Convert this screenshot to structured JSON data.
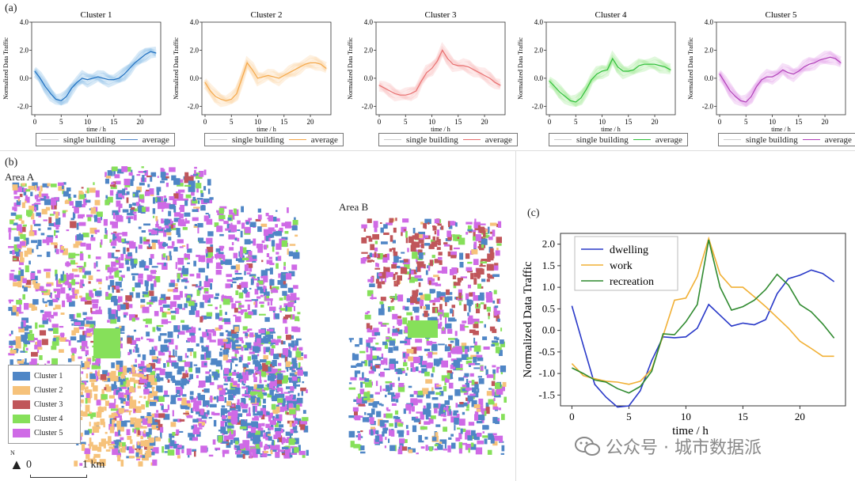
{
  "panel_labels": {
    "a": "(a)",
    "b": "(b)",
    "c": "(c)"
  },
  "area_labels": {
    "a": "Area A",
    "b": "Area B"
  },
  "map_legend": [
    {
      "label": "Cluster 1",
      "color": "#4f86c6"
    },
    {
      "label": "Cluster 2",
      "color": "#f6c27a"
    },
    {
      "label": "Cluster 3",
      "color": "#c0565a"
    },
    {
      "label": "Cluster 4",
      "color": "#86e05a"
    },
    {
      "label": "Cluster 5",
      "color": "#cf6ae6"
    }
  ],
  "scale_bar": {
    "north": "N",
    "start": "0",
    "end": "1 km"
  },
  "watermark": "公众号 · 城市数据派",
  "small_legend": {
    "single": "single building",
    "average": "average"
  },
  "chart_data": [
    {
      "type": "line",
      "title": "Cluster 1",
      "color": "#1f6fc0",
      "band": "#8dbfe8",
      "xlabel": "time / h",
      "ylabel": "Normalized Data Traffic",
      "xlim": [
        0,
        23
      ],
      "ylim": [
        -2.6,
        4.0
      ],
      "xticks": [
        0,
        5,
        10,
        15,
        20
      ],
      "yticks": [
        -2.0,
        0.0,
        2.0,
        4.0
      ],
      "x": [
        0,
        1,
        2,
        3,
        4,
        5,
        6,
        7,
        8,
        9,
        10,
        11,
        12,
        13,
        14,
        15,
        16,
        17,
        18,
        19,
        20,
        21,
        22,
        23
      ],
      "values": [
        0.5,
        0.0,
        -0.6,
        -1.1,
        -1.5,
        -1.6,
        -1.3,
        -0.7,
        -0.3,
        0.0,
        -0.1,
        0.0,
        0.1,
        0.0,
        -0.1,
        -0.1,
        0.0,
        0.3,
        0.7,
        1.1,
        1.4,
        1.7,
        1.9,
        1.8
      ]
    },
    {
      "type": "line",
      "title": "Cluster 2",
      "color": "#f4a84a",
      "band": "#fbd8a8",
      "xlabel": "time / h",
      "ylabel": "Normalized Data Traffic",
      "xlim": [
        0,
        23
      ],
      "ylim": [
        -2.6,
        4.0
      ],
      "xticks": [
        0,
        5,
        10,
        15,
        20
      ],
      "yticks": [
        -2.0,
        0.0,
        2.0,
        4.0
      ],
      "x": [
        0,
        1,
        2,
        3,
        4,
        5,
        6,
        7,
        8,
        9,
        10,
        11,
        12,
        13,
        14,
        15,
        16,
        17,
        18,
        19,
        20,
        21,
        22,
        23
      ],
      "values": [
        -0.3,
        -0.9,
        -1.3,
        -1.5,
        -1.6,
        -1.5,
        -1.1,
        0.0,
        1.1,
        0.6,
        0.0,
        0.1,
        0.2,
        0.1,
        0.0,
        0.2,
        0.4,
        0.6,
        0.8,
        1.0,
        1.1,
        1.1,
        1.0,
        0.7
      ]
    },
    {
      "type": "line",
      "title": "Cluster 3",
      "color": "#e87070",
      "band": "#f8c3c3",
      "xlabel": "time / h",
      "ylabel": "Normalized Data Traffic",
      "xlim": [
        0,
        23
      ],
      "ylim": [
        -2.6,
        4.0
      ],
      "xticks": [
        0,
        5,
        10,
        15,
        20
      ],
      "yticks": [
        -2.0,
        0.0,
        2.0,
        4.0
      ],
      "x": [
        0,
        1,
        2,
        3,
        4,
        5,
        6,
        7,
        8,
        9,
        10,
        11,
        12,
        13,
        14,
        15,
        16,
        17,
        18,
        19,
        20,
        21,
        22,
        23
      ],
      "values": [
        -0.5,
        -0.7,
        -0.9,
        -1.1,
        -1.2,
        -1.2,
        -1.1,
        -0.9,
        -0.2,
        0.4,
        0.7,
        1.2,
        2.0,
        1.4,
        1.0,
        0.9,
        0.9,
        0.8,
        0.6,
        0.4,
        0.2,
        0.0,
        -0.3,
        -0.5
      ]
    },
    {
      "type": "line",
      "title": "Cluster 4",
      "color": "#2fbf3a",
      "band": "#a6ea9c",
      "xlabel": "time / h",
      "ylabel": "Normalized Data Traffic",
      "xlim": [
        0,
        23
      ],
      "ylim": [
        -2.6,
        4.0
      ],
      "xticks": [
        0,
        5,
        10,
        15,
        20
      ],
      "yticks": [
        -2.0,
        0.0,
        2.0,
        4.0
      ],
      "x": [
        0,
        1,
        2,
        3,
        4,
        5,
        6,
        7,
        8,
        9,
        10,
        11,
        12,
        13,
        14,
        15,
        16,
        17,
        18,
        19,
        20,
        21,
        22,
        23
      ],
      "values": [
        -0.2,
        -0.6,
        -1.0,
        -1.3,
        -1.6,
        -1.7,
        -1.4,
        -0.8,
        -0.1,
        0.3,
        0.5,
        0.6,
        1.4,
        0.8,
        0.5,
        0.5,
        0.6,
        0.9,
        1.0,
        1.0,
        1.0,
        0.9,
        0.8,
        0.6
      ]
    },
    {
      "type": "line",
      "title": "Cluster 5",
      "color": "#b040b8",
      "band": "#e6a6ea",
      "xlabel": "time / h",
      "ylabel": "Normalized Data Traffic",
      "xlim": [
        0,
        23
      ],
      "ylim": [
        -2.6,
        4.0
      ],
      "xticks": [
        0,
        5,
        10,
        15,
        20
      ],
      "yticks": [
        -2.0,
        0.0,
        2.0,
        4.0
      ],
      "x": [
        0,
        1,
        2,
        3,
        4,
        5,
        6,
        7,
        8,
        9,
        10,
        11,
        12,
        13,
        14,
        15,
        16,
        17,
        18,
        19,
        20,
        21,
        22,
        23
      ],
      "values": [
        0.3,
        -0.3,
        -0.9,
        -1.3,
        -1.6,
        -1.7,
        -1.3,
        -0.6,
        -0.1,
        0.1,
        0.1,
        0.3,
        0.6,
        0.4,
        0.3,
        0.5,
        0.8,
        1.0,
        1.1,
        1.3,
        1.4,
        1.5,
        1.4,
        1.1
      ]
    },
    {
      "type": "line",
      "title": "",
      "xlabel": "time / h",
      "ylabel": "Normalized Data Traffic",
      "xlim": [
        -1,
        24
      ],
      "ylim": [
        -1.75,
        2.25
      ],
      "xticks": [
        0,
        5,
        10,
        15,
        20
      ],
      "yticks": [
        -1.5,
        -1.0,
        -0.5,
        0.0,
        0.5,
        1.0,
        1.5,
        2.0
      ],
      "x": [
        0,
        1,
        2,
        3,
        4,
        5,
        6,
        7,
        8,
        9,
        10,
        11,
        12,
        13,
        14,
        15,
        16,
        17,
        18,
        19,
        20,
        21,
        22,
        23
      ],
      "series": [
        {
          "name": "dwelling",
          "color": "#2838c8",
          "values": [
            0.57,
            -0.35,
            -1.25,
            -1.55,
            -1.78,
            -1.75,
            -1.4,
            -0.7,
            -0.15,
            -0.17,
            -0.15,
            0.05,
            0.6,
            0.35,
            0.1,
            0.17,
            0.13,
            0.25,
            0.85,
            1.2,
            1.28,
            1.4,
            1.32,
            1.13
          ]
        },
        {
          "name": "work",
          "color": "#f1b035",
          "values": [
            -0.77,
            -1.05,
            -1.12,
            -1.18,
            -1.2,
            -1.25,
            -1.18,
            -0.9,
            -0.12,
            0.7,
            0.75,
            1.25,
            2.13,
            1.3,
            1.0,
            1.0,
            0.78,
            0.55,
            0.3,
            0.05,
            -0.25,
            -0.42,
            -0.6,
            -0.6
          ]
        },
        {
          "name": "recreation",
          "color": "#2f8a2f",
          "values": [
            -0.87,
            -1.0,
            -1.15,
            -1.2,
            -1.35,
            -1.45,
            -1.3,
            -0.95,
            -0.08,
            -0.1,
            0.2,
            0.6,
            2.1,
            1.0,
            0.47,
            0.55,
            0.7,
            0.95,
            1.3,
            1.05,
            0.6,
            0.43,
            0.15,
            -0.18
          ]
        }
      ]
    }
  ]
}
